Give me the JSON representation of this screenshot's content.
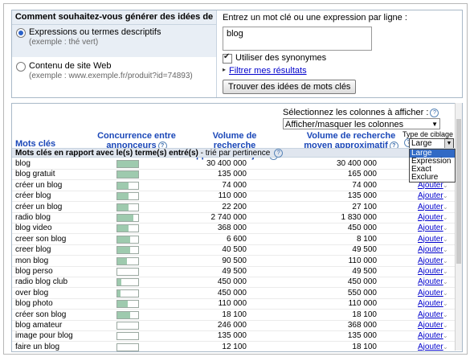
{
  "question": "Comment souhaitez-vous générer des idées de mots clés ?",
  "options": [
    {
      "label": "Expressions ou termes descriptifs",
      "example": "(exemple : thé vert)",
      "selected": true
    },
    {
      "label": "Contenu de site Web",
      "example": "(exemple : www.exemple.fr/produit?id=74893)",
      "selected": false
    }
  ],
  "input": {
    "prompt": "Entrez un mot clé ou une expression par ligne :",
    "value": "blog",
    "synonyms_label": "Utiliser des synonymes",
    "synonyms_checked": true,
    "filter_link": "Filtrer mes résultats",
    "submit_label": "Trouver des idées de mots clés"
  },
  "columns": {
    "select_label": "Sélectionnez les colonnes à afficher :",
    "select_value": "Afficher/masquer les colonnes",
    "headers": {
      "keywords": "Mots clés",
      "competition": "Concurrence entre annonceurs",
      "monthly": "Volume de recherche approximatif : juin",
      "average": "Volume de recherche moyen approximatif"
    }
  },
  "match_type": {
    "label": "Type de ciblage :",
    "value": "Large",
    "options": [
      "Large",
      "Expression",
      "Exact",
      "Exclure"
    ],
    "selected_index": 0
  },
  "group": {
    "title": "Mots clés en rapport avec le(s) terme(s) entré(s)",
    "sort": "- trié par pertinence"
  },
  "add_label": "Ajouter",
  "rows": [
    {
      "kw": "blog",
      "comp": 1.0,
      "vol": "30 400 000",
      "avg": "30 400 000"
    },
    {
      "kw": "blog gratuit",
      "comp": 1.0,
      "vol": "135 000",
      "avg": "165 000"
    },
    {
      "kw": "créer un blog",
      "comp": 0.55,
      "vol": "74 000",
      "avg": "74 000"
    },
    {
      "kw": "créer blog",
      "comp": 0.55,
      "vol": "110 000",
      "avg": "135 000"
    },
    {
      "kw": "créer un blog",
      "comp": 0.55,
      "vol": "22 200",
      "avg": "27 100"
    },
    {
      "kw": "radio blog",
      "comp": 0.75,
      "vol": "2 740 000",
      "avg": "1 830 000"
    },
    {
      "kw": "blog video",
      "comp": 0.55,
      "vol": "368 000",
      "avg": "450 000"
    },
    {
      "kw": "creer son blog",
      "comp": 0.6,
      "vol": "6 600",
      "avg": "8 100"
    },
    {
      "kw": "creer blog",
      "comp": 0.6,
      "vol": "40 500",
      "avg": "49 500"
    },
    {
      "kw": "mon blog",
      "comp": 0.45,
      "vol": "90 500",
      "avg": "110 000"
    },
    {
      "kw": "blog perso",
      "comp": 0.0,
      "vol": "49 500",
      "avg": "49 500"
    },
    {
      "kw": "radio blog club",
      "comp": 0.2,
      "vol": "450 000",
      "avg": "450 000"
    },
    {
      "kw": "over blog",
      "comp": 0.15,
      "vol": "450 000",
      "avg": "550 000"
    },
    {
      "kw": "blog photo",
      "comp": 0.5,
      "vol": "110 000",
      "avg": "110 000"
    },
    {
      "kw": "créer son blog",
      "comp": 0.6,
      "vol": "18 100",
      "avg": "18 100"
    },
    {
      "kw": "blog amateur",
      "comp": 0.0,
      "vol": "246 000",
      "avg": "368 000"
    },
    {
      "kw": "image pour blog",
      "comp": 0.0,
      "vol": "135 000",
      "avg": "135 000"
    },
    {
      "kw": "faire un blog",
      "comp": 0.0,
      "vol": "12 100",
      "avg": "18 100"
    }
  ]
}
